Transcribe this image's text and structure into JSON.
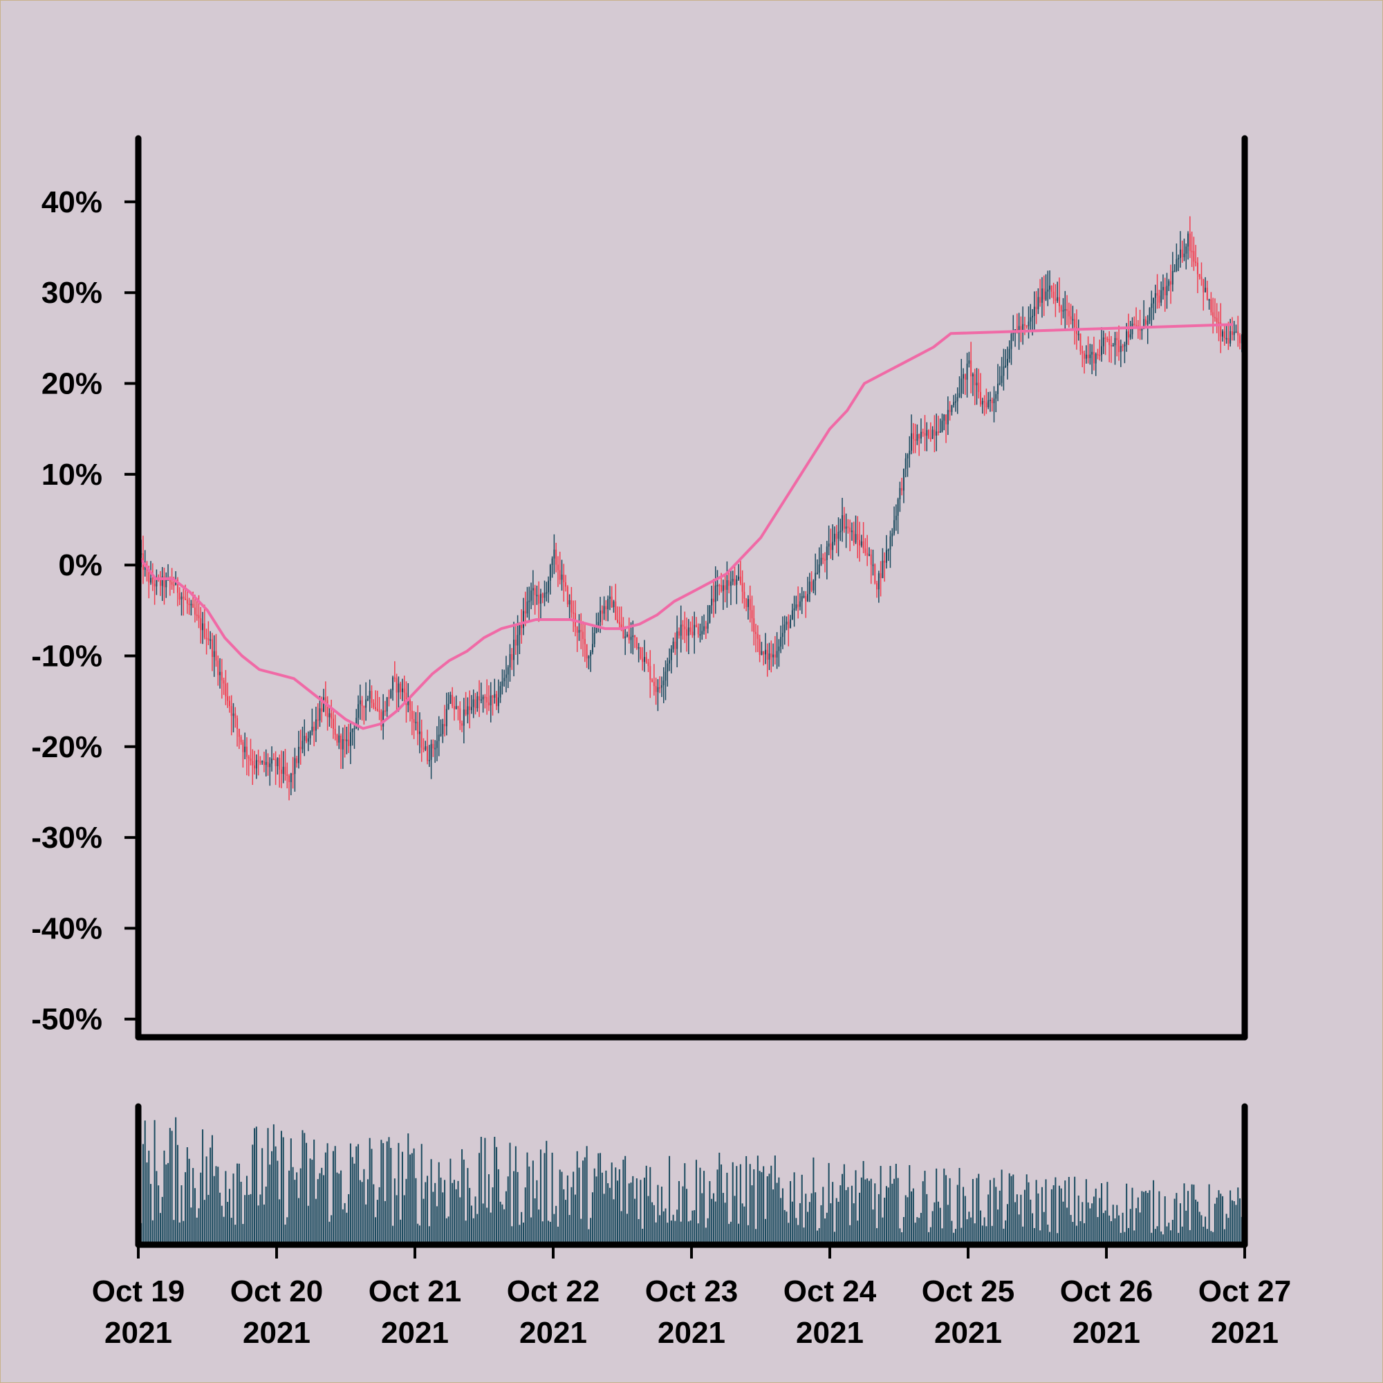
{
  "chart_data": {
    "type": "candlestick",
    "title": "",
    "xlabel": "",
    "ylabel": "",
    "y_unit": "percent change",
    "ylim": [
      -52,
      47
    ],
    "yticks": [
      40,
      30,
      20,
      10,
      0,
      -10,
      -20,
      -30,
      -40,
      -50
    ],
    "ytick_labels": [
      "40%",
      "30%",
      "20%",
      "10%",
      "0%",
      "-10%",
      "-20%",
      "-30%",
      "-40%",
      "-50%"
    ],
    "x_range": [
      "2021-10-19",
      "2021-10-27"
    ],
    "xtick_labels": [
      {
        "date": "2021-10-19",
        "line1": "Oct 19",
        "line2": "2021"
      },
      {
        "date": "2021-10-20",
        "line1": "Oct 20",
        "line2": "2021"
      },
      {
        "date": "2021-10-21",
        "line1": "Oct 21",
        "line2": "2021"
      },
      {
        "date": "2021-10-22",
        "line1": "Oct 22",
        "line2": "2021"
      },
      {
        "date": "2021-10-23",
        "line1": "Oct 23",
        "line2": "2021"
      },
      {
        "date": "2021-10-24",
        "line1": "Oct 24",
        "line2": "2021"
      },
      {
        "date": "2021-10-25",
        "line1": "Oct 25",
        "line2": "2021"
      },
      {
        "date": "2021-10-26",
        "line1": "Oct 26",
        "line2": "2021"
      },
      {
        "date": "2021-10-27",
        "line1": "Oct 27",
        "line2": "2021"
      }
    ],
    "price_path": [
      {
        "t": "2021-10-19T00:00",
        "v": 1
      },
      {
        "t": "2021-10-19T02:00",
        "v": -2
      },
      {
        "t": "2021-10-19T04:00",
        "v": -2
      },
      {
        "t": "2021-10-19T06:00",
        "v": -2
      },
      {
        "t": "2021-10-19T08:00",
        "v": -4
      },
      {
        "t": "2021-10-19T10:00",
        "v": -6
      },
      {
        "t": "2021-10-19T12:00",
        "v": -8
      },
      {
        "t": "2021-10-19T14:00",
        "v": -12
      },
      {
        "t": "2021-10-19T16:00",
        "v": -16
      },
      {
        "t": "2021-10-19T18:00",
        "v": -20
      },
      {
        "t": "2021-10-19T20:00",
        "v": -22
      },
      {
        "t": "2021-10-19T22:00",
        "v": -22
      },
      {
        "t": "2021-10-20T00:00",
        "v": -22
      },
      {
        "t": "2021-10-20T02:00",
        "v": -24
      },
      {
        "t": "2021-10-20T04:00",
        "v": -20
      },
      {
        "t": "2021-10-20T06:00",
        "v": -18
      },
      {
        "t": "2021-10-20T08:00",
        "v": -15
      },
      {
        "t": "2021-10-20T10:00",
        "v": -19
      },
      {
        "t": "2021-10-20T12:00",
        "v": -20
      },
      {
        "t": "2021-10-20T14:00",
        "v": -16
      },
      {
        "t": "2021-10-20T16:00",
        "v": -14
      },
      {
        "t": "2021-10-20T18:00",
        "v": -17
      },
      {
        "t": "2021-10-20T20:00",
        "v": -13
      },
      {
        "t": "2021-10-20T22:00",
        "v": -14
      },
      {
        "t": "2021-10-21T00:00",
        "v": -18
      },
      {
        "t": "2021-10-21T02:00",
        "v": -21
      },
      {
        "t": "2021-10-21T04:00",
        "v": -19
      },
      {
        "t": "2021-10-21T06:00",
        "v": -15
      },
      {
        "t": "2021-10-21T08:00",
        "v": -17
      },
      {
        "t": "2021-10-21T10:00",
        "v": -15
      },
      {
        "t": "2021-10-21T12:00",
        "v": -15
      },
      {
        "t": "2021-10-21T14:00",
        "v": -15
      },
      {
        "t": "2021-10-21T16:00",
        "v": -11
      },
      {
        "t": "2021-10-21T18:00",
        "v": -7
      },
      {
        "t": "2021-10-21T20:00",
        "v": -3
      },
      {
        "t": "2021-10-21T22:00",
        "v": -4
      },
      {
        "t": "2021-10-22T00:00",
        "v": 1
      },
      {
        "t": "2021-10-22T02:00",
        "v": -3
      },
      {
        "t": "2021-10-22T04:00",
        "v": -7
      },
      {
        "t": "2021-10-22T06:00",
        "v": -10
      },
      {
        "t": "2021-10-22T08:00",
        "v": -5
      },
      {
        "t": "2021-10-22T10:00",
        "v": -4
      },
      {
        "t": "2021-10-22T12:00",
        "v": -8
      },
      {
        "t": "2021-10-22T14:00",
        "v": -8
      },
      {
        "t": "2021-10-22T16:00",
        "v": -11
      },
      {
        "t": "2021-10-22T18:00",
        "v": -14
      },
      {
        "t": "2021-10-22T20:00",
        "v": -10
      },
      {
        "t": "2021-10-22T22:00",
        "v": -7
      },
      {
        "t": "2021-10-23T00:00",
        "v": -7
      },
      {
        "t": "2021-10-23T02:00",
        "v": -7
      },
      {
        "t": "2021-10-23T04:00",
        "v": -3
      },
      {
        "t": "2021-10-23T06:00",
        "v": -2
      },
      {
        "t": "2021-10-23T08:00",
        "v": -2
      },
      {
        "t": "2021-10-23T10:00",
        "v": -5
      },
      {
        "t": "2021-10-23T12:00",
        "v": -10
      },
      {
        "t": "2021-10-23T14:00",
        "v": -10
      },
      {
        "t": "2021-10-23T16:00",
        "v": -7
      },
      {
        "t": "2021-10-23T18:00",
        "v": -5
      },
      {
        "t": "2021-10-23T20:00",
        "v": -3
      },
      {
        "t": "2021-10-23T22:00",
        "v": 0
      },
      {
        "t": "2021-10-24T00:00",
        "v": 2
      },
      {
        "t": "2021-10-24T02:00",
        "v": 5
      },
      {
        "t": "2021-10-24T04:00",
        "v": 3
      },
      {
        "t": "2021-10-24T06:00",
        "v": 2
      },
      {
        "t": "2021-10-24T08:00",
        "v": -2
      },
      {
        "t": "2021-10-24T10:00",
        "v": 2
      },
      {
        "t": "2021-10-24T12:00",
        "v": 8
      },
      {
        "t": "2021-10-24T14:00",
        "v": 14
      },
      {
        "t": "2021-10-24T16:00",
        "v": 14
      },
      {
        "t": "2021-10-24T18:00",
        "v": 15
      },
      {
        "t": "2021-10-24T20:00",
        "v": 16
      },
      {
        "t": "2021-10-24T22:00",
        "v": 19
      },
      {
        "t": "2021-10-25T00:00",
        "v": 22
      },
      {
        "t": "2021-10-25T02:00",
        "v": 18
      },
      {
        "t": "2021-10-25T04:00",
        "v": 18
      },
      {
        "t": "2021-10-25T06:00",
        "v": 22
      },
      {
        "t": "2021-10-25T08:00",
        "v": 26
      },
      {
        "t": "2021-10-25T10:00",
        "v": 26
      },
      {
        "t": "2021-10-25T12:00",
        "v": 29
      },
      {
        "t": "2021-10-25T14:00",
        "v": 31
      },
      {
        "t": "2021-10-25T16:00",
        "v": 28
      },
      {
        "t": "2021-10-25T18:00",
        "v": 27
      },
      {
        "t": "2021-10-25T20:00",
        "v": 23
      },
      {
        "t": "2021-10-25T22:00",
        "v": 23
      },
      {
        "t": "2021-10-26T00:00",
        "v": 25
      },
      {
        "t": "2021-10-26T02:00",
        "v": 24
      },
      {
        "t": "2021-10-26T04:00",
        "v": 26
      },
      {
        "t": "2021-10-26T06:00",
        "v": 26
      },
      {
        "t": "2021-10-26T08:00",
        "v": 29
      },
      {
        "t": "2021-10-26T10:00",
        "v": 30
      },
      {
        "t": "2021-10-26T12:00",
        "v": 33
      },
      {
        "t": "2021-10-26T14:00",
        "v": 36
      },
      {
        "t": "2021-10-26T16:00",
        "v": 32
      },
      {
        "t": "2021-10-26T18:00",
        "v": 28
      },
      {
        "t": "2021-10-26T20:00",
        "v": 25
      },
      {
        "t": "2021-10-26T22:00",
        "v": 25
      }
    ],
    "moving_average": [
      {
        "t": "2021-10-19T00:00",
        "v": 1
      },
      {
        "t": "2021-10-19T03:00",
        "v": -1.5
      },
      {
        "t": "2021-10-19T06:00",
        "v": -1.5
      },
      {
        "t": "2021-10-19T09:00",
        "v": -3
      },
      {
        "t": "2021-10-19T12:00",
        "v": -5
      },
      {
        "t": "2021-10-19T15:00",
        "v": -8
      },
      {
        "t": "2021-10-19T18:00",
        "v": -10
      },
      {
        "t": "2021-10-19T21:00",
        "v": -11.5
      },
      {
        "t": "2021-10-20T00:00",
        "v": -12
      },
      {
        "t": "2021-10-20T03:00",
        "v": -12.5
      },
      {
        "t": "2021-10-20T06:00",
        "v": -14
      },
      {
        "t": "2021-10-20T09:00",
        "v": -15.5
      },
      {
        "t": "2021-10-20T12:00",
        "v": -17
      },
      {
        "t": "2021-10-20T15:00",
        "v": -18
      },
      {
        "t": "2021-10-20T18:00",
        "v": -17.5
      },
      {
        "t": "2021-10-20T21:00",
        "v": -16
      },
      {
        "t": "2021-10-21T00:00",
        "v": -14
      },
      {
        "t": "2021-10-21T03:00",
        "v": -12
      },
      {
        "t": "2021-10-21T06:00",
        "v": -10.5
      },
      {
        "t": "2021-10-21T09:00",
        "v": -9.5
      },
      {
        "t": "2021-10-21T12:00",
        "v": -8
      },
      {
        "t": "2021-10-21T15:00",
        "v": -7
      },
      {
        "t": "2021-10-21T18:00",
        "v": -6.5
      },
      {
        "t": "2021-10-21T21:00",
        "v": -6
      },
      {
        "t": "2021-10-22T00:00",
        "v": -6
      },
      {
        "t": "2021-10-22T03:00",
        "v": -6
      },
      {
        "t": "2021-10-22T06:00",
        "v": -6.5
      },
      {
        "t": "2021-10-22T09:00",
        "v": -7
      },
      {
        "t": "2021-10-22T12:00",
        "v": -7
      },
      {
        "t": "2021-10-22T15:00",
        "v": -6.5
      },
      {
        "t": "2021-10-22T18:00",
        "v": -5.5
      },
      {
        "t": "2021-10-22T21:00",
        "v": -4
      },
      {
        "t": "2021-10-23T00:00",
        "v": -3
      },
      {
        "t": "2021-10-23T03:00",
        "v": -2
      },
      {
        "t": "2021-10-23T06:00",
        "v": -1
      },
      {
        "t": "2021-10-23T09:00",
        "v": 1
      },
      {
        "t": "2021-10-23T12:00",
        "v": 3
      },
      {
        "t": "2021-10-23T15:00",
        "v": 6
      },
      {
        "t": "2021-10-23T18:00",
        "v": 9
      },
      {
        "t": "2021-10-23T21:00",
        "v": 12
      },
      {
        "t": "2021-10-24T00:00",
        "v": 15
      },
      {
        "t": "2021-10-24T03:00",
        "v": 17
      },
      {
        "t": "2021-10-24T06:00",
        "v": 20
      },
      {
        "t": "2021-10-24T09:00",
        "v": 21
      },
      {
        "t": "2021-10-24T12:00",
        "v": 22
      },
      {
        "t": "2021-10-24T15:00",
        "v": 23
      },
      {
        "t": "2021-10-24T18:00",
        "v": 24
      },
      {
        "t": "2021-10-24T21:00",
        "v": 25.5
      },
      {
        "t": "2021-10-26T22:00",
        "v": 26.5
      }
    ],
    "volume_ylim": [
      0,
      100
    ],
    "colors": {
      "background": "#d5cad3",
      "up": "#1a4a5e",
      "down": "#f23c4e",
      "moving_average": "#f06aa6",
      "volume": "#1a4a5e",
      "axis": "#000000"
    },
    "grid": false,
    "legend": "none"
  }
}
